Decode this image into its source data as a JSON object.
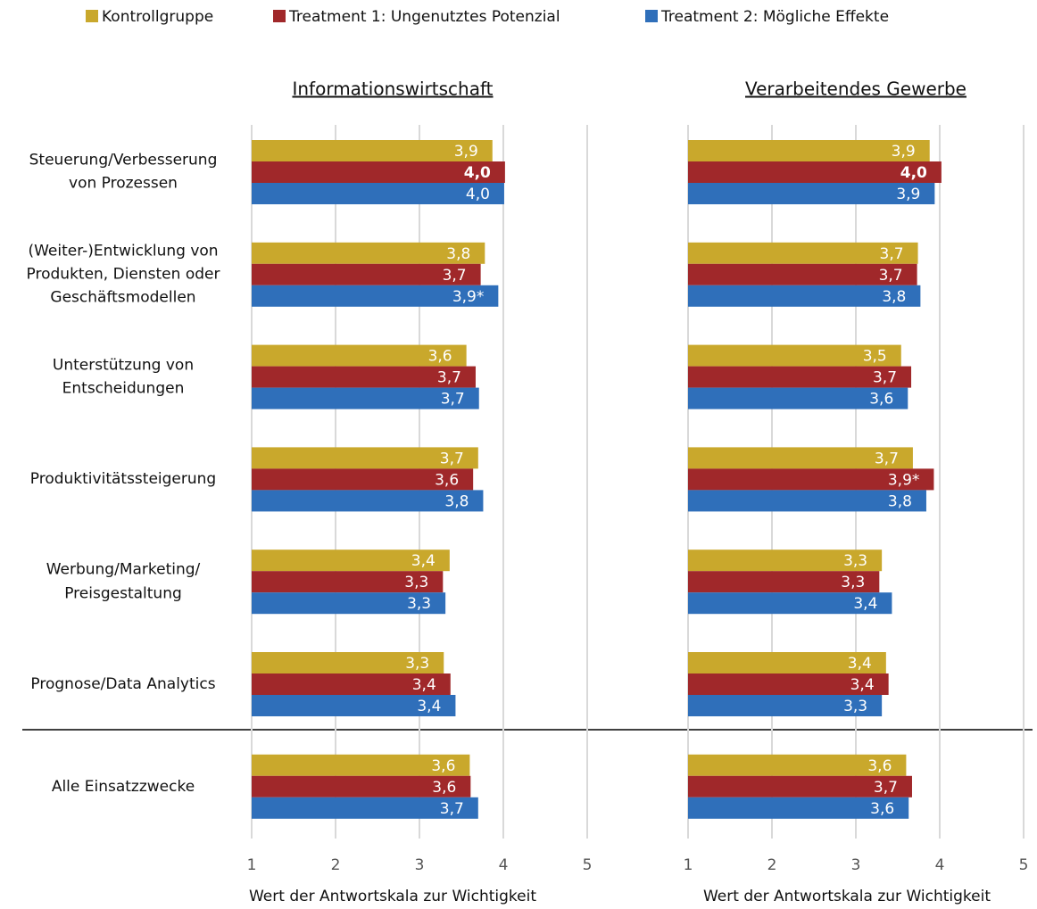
{
  "chart_data": {
    "type": "bar",
    "categories": [
      "Steuerung/Verbesserung\nvon Prozessen",
      "(Weiter-)Entwicklung von\nProdukten, Diensten oder\nGeschäftsmodellen",
      "Unterstützung von\nEntscheidungen",
      "Produktivitätssteigerung",
      "Werbung/Marketing/\nPreisgestaltung",
      "Prognose/Data Analytics",
      "Alle Einsatzzwecke"
    ],
    "series": [
      {
        "name": "Kontrollgruppe",
        "color": "#c9a82c"
      },
      {
        "name": "Treatment 1: Ungenutztes Potenzial",
        "color": "#a0282a"
      },
      {
        "name": "Treatment 2: Mögliche Effekte",
        "color": "#2f6fba"
      }
    ],
    "panels": [
      {
        "title": "Informationswirtschaft",
        "xlabel": "Wert der Antwortskala zur Wichtigkeit",
        "xlim": [
          1,
          5
        ],
        "xticks": [
          1,
          2,
          3,
          4,
          5
        ],
        "grid": true,
        "series": [
          {
            "values": [
              3.87,
              3.78,
              3.56,
              3.7,
              3.36,
              3.29,
              3.6
            ],
            "value_labels": [
              "3,9",
              "3,8",
              "3,6",
              "3,7",
              "3,4",
              "3,3",
              "3,6"
            ]
          },
          {
            "values": [
              4.02,
              3.73,
              3.67,
              3.64,
              3.28,
              3.37,
              3.61
            ],
            "value_labels": [
              "4,0",
              "3,7",
              "3,7",
              "3,6",
              "3,3",
              "3,4",
              "3,6"
            ]
          },
          {
            "values": [
              4.01,
              3.94,
              3.71,
              3.76,
              3.31,
              3.43,
              3.7
            ],
            "value_labels": [
              "4,0",
              "3,9*",
              "3,7",
              "3,8",
              "3,3",
              "3,4",
              "3,7"
            ]
          }
        ]
      },
      {
        "title": "Verarbeitendes Gewerbe",
        "xlabel": "Wert der Antwortskala zur Wichtigkeit",
        "xlim": [
          1,
          5
        ],
        "xticks": [
          1,
          2,
          3,
          4,
          5
        ],
        "grid": true,
        "series": [
          {
            "values": [
              3.88,
              3.74,
              3.54,
              3.68,
              3.31,
              3.36,
              3.6
            ],
            "value_labels": [
              "3,9",
              "3,7",
              "3,5",
              "3,7",
              "3,3",
              "3,4",
              "3,6"
            ]
          },
          {
            "values": [
              4.02,
              3.73,
              3.66,
              3.93,
              3.28,
              3.39,
              3.67
            ],
            "value_labels": [
              "4,0",
              "3,7",
              "3,7",
              "3,9*",
              "3,3",
              "3,4",
              "3,7"
            ]
          },
          {
            "values": [
              3.94,
              3.77,
              3.62,
              3.84,
              3.43,
              3.31,
              3.63
            ],
            "value_labels": [
              "3,9",
              "3,8",
              "3,6",
              "3,8",
              "3,4",
              "3,3",
              "3,6"
            ]
          }
        ]
      }
    ]
  }
}
